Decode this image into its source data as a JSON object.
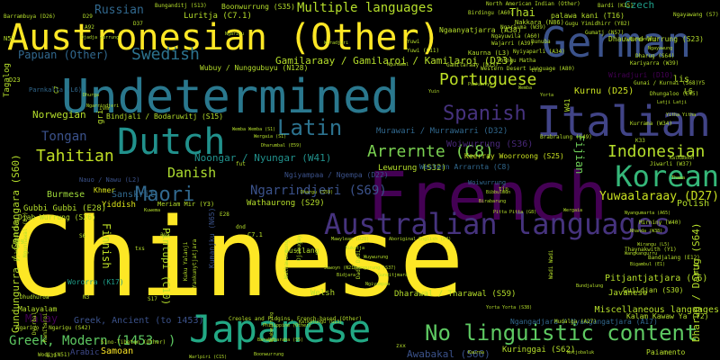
{
  "words": [
    {
      "text": "Chinese",
      "color": "#fde725"
    },
    {
      "text": "French",
      "color": "#440154"
    },
    {
      "text": "Undetermined",
      "color": "#2a788e"
    },
    {
      "text": "Austronesian (Other)",
      "color": "#fde725"
    },
    {
      "text": "German",
      "color": "#3b528b"
    },
    {
      "text": "Italian",
      "color": "#414487"
    },
    {
      "text": "Dutch",
      "color": "#21918c"
    },
    {
      "text": "Japanese",
      "color": "#22a884"
    },
    {
      "text": "Australian languages",
      "color": "#46337e"
    },
    {
      "text": "No linguistic content",
      "color": "#5ec962"
    },
    {
      "text": "Korean",
      "color": "#35b779"
    },
    {
      "text": "Spanish",
      "color": "#46327e"
    },
    {
      "text": "Latin",
      "color": "#2c728e"
    },
    {
      "text": "Portuguese",
      "color": "#bddf26"
    },
    {
      "text": "Maori",
      "color": "#31688e"
    },
    {
      "text": "Swedish",
      "color": "#2c728e"
    },
    {
      "text": "Arrernte (C8)",
      "color": "#7ad151"
    },
    {
      "text": "Indonesian",
      "color": "#b5de2b"
    },
    {
      "text": "Tahitian",
      "color": "#c0df25"
    },
    {
      "text": "Tongan",
      "color": "#3b528b"
    },
    {
      "text": "Danish",
      "color": "#addc30"
    },
    {
      "text": "Multiple languages",
      "color": "#b5de2b"
    },
    {
      "text": "Greek, Modern (1453- )",
      "color": "#5ec962"
    },
    {
      "text": "Ngarrindjeri (S69)",
      "color": "#3b528b"
    },
    {
      "text": "Russian",
      "color": "#31688e"
    },
    {
      "text": "Yuwaalaraay (D27)",
      "color": "#c8e020"
    },
    {
      "text": "Norwegian",
      "color": "#b5de2b"
    },
    {
      "text": "Papuan (Other)",
      "color": "#31688e"
    },
    {
      "text": "Gamilaraay / Gamilaroi / Kamilaroi (D23)",
      "color": "#b5de2b"
    },
    {
      "text": "Noongar / Nyungar (W41)",
      "color": "#21918c"
    },
    {
      "text": "Finnish",
      "color": "#bddf26"
    },
    {
      "text": "Pintupi (C10)",
      "color": "#b5de2b"
    },
    {
      "text": "Burmese",
      "color": "#9fda3a"
    },
    {
      "text": "Sanskrit",
      "color": "#31688e"
    },
    {
      "text": "Kurnu (D25)",
      "color": "#c8e020"
    },
    {
      "text": "Lewurung (S32)",
      "color": "#b5de2b"
    },
    {
      "text": "Wathaurong (S29)",
      "color": "#b5de2b"
    },
    {
      "text": "Murawari / Murrawarri (D32)",
      "color": "#31688e"
    },
    {
      "text": "Thai",
      "color": "#b5de2b"
    },
    {
      "text": "Czech",
      "color": "#1f9e89"
    },
    {
      "text": "Woiwurrung (S36)",
      "color": "#482878"
    },
    {
      "text": "Keerray Woorroong (S25)",
      "color": "#c8e020"
    },
    {
      "text": "Fijian",
      "color": "#6ece58"
    },
    {
      "text": "Polish",
      "color": "#b5de2b"
    },
    {
      "text": "Malay",
      "color": "#440154"
    },
    {
      "text": "Samoan",
      "color": "#fde725"
    },
    {
      "text": "Welsh",
      "color": "#b5de2b"
    },
    {
      "text": "Javanese",
      "color": "#b5de2b"
    },
    {
      "text": "Yiddish",
      "color": "#d8e219"
    },
    {
      "text": "Khmer",
      "color": "#d8e219"
    },
    {
      "text": "Arabic",
      "color": "#3e4989"
    },
    {
      "text": "Malayalam",
      "color": "#b5de2b"
    },
    {
      "text": "Awabakal (S66)",
      "color": "#3b528b"
    },
    {
      "text": "Wororra (K17)",
      "color": "#1f9e89"
    },
    {
      "text": "Dharawal / Tharawal (S59)",
      "color": "#b5de2b"
    },
    {
      "text": "Miscellaneous languages",
      "color": "#b5de2b"
    },
    {
      "text": "Pitjantjatjara (C6)",
      "color": "#b5de2b"
    },
    {
      "text": "Paiamento",
      "color": "#b5de2b"
    },
    {
      "text": "Greek, Ancient (to 1453)",
      "color": "#3b528b"
    },
    {
      "text": "Kuringgai (S62)",
      "color": "#b5de2b"
    },
    {
      "text": "Gundungurra / Gandangara (S60)",
      "color": "#b5de2b"
    },
    {
      "text": "Dharug / Darug (S64)",
      "color": "#b5de2b"
    },
    {
      "text": "Luritja (C7.1)",
      "color": "#b5de2b"
    },
    {
      "text": "Boonwurrung (S35)",
      "color": "#b5de2b"
    },
    {
      "text": "Ngaanyatjarra (A38)",
      "color": "#b5de2b"
    },
    {
      "text": "Djab Wurrung (S26)",
      "color": "#b5de2b"
    },
    {
      "text": "Gubbi Gubbi (E28)",
      "color": "#b5de2b"
    },
    {
      "text": "Ngiyampaa / Ngempa (D22)",
      "color": "#3b528b"
    },
    {
      "text": "Western Arrarnta (C8)",
      "color": "#31688e"
    },
    {
      "text": "Bindjali / Bodaruwitj (S15)",
      "color": "#b5de2b"
    },
    {
      "text": "Wubuy / Nunggubuyu (N128)",
      "color": "#b5de2b"
    },
    {
      "text": "Parnkalla (L6)",
      "color": "#31688e"
    },
    {
      "text": "Kumanjku (N65)",
      "color": "#3b528b"
    },
    {
      "text": "Nauo / Nawu (L2)",
      "color": "#3b528b"
    },
    {
      "text": "Meriam Mir (Y3)",
      "color": "#b5de2b"
    },
    {
      "text": "Wiradjuri (D10)",
      "color": "#440154"
    },
    {
      "text": "Dhauwurd Wurrung (S23)",
      "color": "#b5de2b"
    },
    {
      "text": "Creoles and Pidgins, French-based (Other)",
      "color": "#b5de2b"
    },
    {
      "text": "Ngangadjara / Nyangangatjara (A17)",
      "color": "#31688e"
    },
    {
      "text": "Kalam Kawaw Ya (Y2)",
      "color": "#b5de2b"
    },
    {
      "text": "Guildjan (S30)",
      "color": "#b5de2b"
    },
    {
      "text": "Yuwi (C11)",
      "color": "#b5de2b"
    },
    {
      "text": "austlang",
      "color": "#b5de2b"
    },
    {
      "text": "Sino-Tibetan (Other)",
      "color": "#b5de2b"
    },
    {
      "text": "Dharug (S64)",
      "color": "#b5de2b"
    },
    {
      "text": "Yolngu Matha",
      "color": "#b5de2b"
    },
    {
      "text": "Gumatj (N57)",
      "color": "#b5de2b"
    },
    {
      "text": "Nakkara (N86)",
      "color": "#b5de2b"
    },
    {
      "text": "Mudalga (A27)",
      "color": "#b5de2b"
    },
    {
      "text": "Woiwurrung",
      "color": "#31688e"
    },
    {
      "text": "Tagalog",
      "color": "#b5de2b"
    },
    {
      "text": "C7.1",
      "color": "#b5de2b"
    },
    {
      "text": "D23",
      "color": "#b5de2b"
    },
    {
      "text": "E29",
      "color": "#b5de2b"
    },
    {
      "text": "N57",
      "color": "#b5de2b"
    },
    {
      "text": "gri",
      "color": "#b5de2b"
    },
    {
      "text": "aus",
      "color": "#b5de2b"
    },
    {
      "text": "lis",
      "color": "#b5de2b"
    },
    {
      "text": "L6",
      "color": "#b5de2b"
    },
    {
      "text": "W41",
      "color": "#b5de2b"
    },
    {
      "text": "mtt",
      "color": "#b5de2b"
    },
    {
      "text": "palawa kani (T16)",
      "color": "#b5de2b"
    },
    {
      "text": "Yuwi",
      "color": "#b5de2b"
    },
    {
      "text": "Kaurna (L3)",
      "color": "#b5de2b"
    },
    {
      "text": "Bardi (K15)",
      "color": "#b5de2b"
    },
    {
      "text": "Bunuba",
      "color": "#b5de2b"
    },
    {
      "text": "Ngayawang (S7)",
      "color": "#b5de2b"
    },
    {
      "text": "North American Indian (Other)",
      "color": "#b5de2b"
    },
    {
      "text": "Birdingu (A60)",
      "color": "#b5de2b"
    },
    {
      "text": "Barrambuya (D26)",
      "color": "#b5de2b"
    },
    {
      "text": "Bunganditj (S13)",
      "color": "#b5de2b"
    },
    {
      "text": "Gamilaraay (D23)",
      "color": "#b5de2b"
    },
    {
      "text": "Ngayuwila (A60)",
      "color": "#b5de2b"
    },
    {
      "text": "Ngarluma (W39)",
      "color": "#b5de2b"
    },
    {
      "text": "Nyiyaparli (A34)",
      "color": "#b5de2b"
    },
    {
      "text": "Wajarri (A39)",
      "color": "#b5de2b"
    },
    {
      "text": "Western Desert Language (A80)",
      "color": "#b5de2b"
    },
    {
      "text": "Gugu Yimidhirr (Y82)",
      "color": "#b5de2b"
    },
    {
      "text": "Kariyarra (W39)",
      "color": "#b5de2b"
    },
    {
      "text": "Gunai / Kurnai (S68)",
      "color": "#b5de2b"
    },
    {
      "text": "Dhungaloo (E45)",
      "color": "#b5de2b"
    },
    {
      "text": "Jiwarli (W37)",
      "color": "#b5de2b"
    },
    {
      "text": "Wemba Wemba (S1)",
      "color": "#b5de2b"
    },
    {
      "text": "Wergaia (S1)",
      "color": "#b5de2b"
    },
    {
      "text": "Dharumbal (E59)",
      "color": "#b5de2b"
    },
    {
      "text": "Dhargu (S59)",
      "color": "#b5de2b"
    },
    {
      "text": "Bibbulmun",
      "color": "#b5de2b"
    },
    {
      "text": "Birabarung",
      "color": "#b5de2b"
    },
    {
      "text": "Pitta Pitta (G8)",
      "color": "#b5de2b"
    },
    {
      "text": "Brabralung (S49)",
      "color": "#b5de2b"
    },
    {
      "text": "Kurrama (W34)",
      "color": "#b5de2b"
    },
    {
      "text": "Nyangumarta (A65)",
      "color": "#b5de2b"
    },
    {
      "text": "Mirniny (W40)",
      "color": "#b5de2b"
    },
    {
      "text": "Nhanda (W38)",
      "color": "#b5de2b"
    },
    {
      "text": "Bigambul (E1)",
      "color": "#b5de2b"
    },
    {
      "text": "Bandjalang (E12)",
      "color": "#b5de2b"
    },
    {
      "text": "Thaynakwith (Y1)",
      "color": "#b5de2b"
    },
    {
      "text": "Wirangu (L5)",
      "color": "#b5de2b"
    },
    {
      "text": "Wangkangurru",
      "color": "#b5de2b"
    },
    {
      "text": "Djadjawurrung",
      "color": "#b5de2b"
    },
    {
      "text": "Ngunnawal (D3)",
      "color": "#b5de2b"
    },
    {
      "text": "Kuku Yalanji",
      "color": "#b5de2b"
    },
    {
      "text": "Yankunytjatjara",
      "color": "#b5de2b"
    },
    {
      "text": "Wathawurrung",
      "color": "#b5de2b"
    },
    {
      "text": "Djabugay",
      "color": "#b5de2b"
    },
    {
      "text": "Dadi Dadi",
      "color": "#b5de2b"
    },
    {
      "text": "Wadi Wadi",
      "color": "#b5de2b"
    },
    {
      "text": "Ngarigo / Ngarigu (S42)",
      "color": "#b5de2b"
    },
    {
      "text": "Dyirbal",
      "color": "#b5de2b"
    },
    {
      "text": "Kamilaroi",
      "color": "#b5de2b"
    },
    {
      "text": "Wodi (N51)",
      "color": "#b5de2b"
    },
    {
      "text": "Boonwurrung",
      "color": "#b5de2b"
    },
    {
      "text": "Djabwurrung",
      "color": "#b5de2b"
    },
    {
      "text": "Warlpiri (C15)",
      "color": "#b5de2b"
    },
    {
      "text": "Philippine (Other)",
      "color": "#b5de2b"
    },
    {
      "text": "Mawylean (D28)",
      "color": "#b5de2b"
    },
    {
      "text": "Aboriginal English (P4)",
      "color": "#b5de2b"
    },
    {
      "text": "Wuywurung",
      "color": "#b5de2b"
    },
    {
      "text": "Jawoyn (N21)",
      "color": "#b5de2b"
    },
    {
      "text": "Kukatja",
      "color": "#b5de2b"
    },
    {
      "text": "Bidjara",
      "color": "#b5de2b"
    },
    {
      "text": "Taungurung (S37)",
      "color": "#b5de2b"
    },
    {
      "text": "Ngiyampaa",
      "color": "#b5de2b"
    },
    {
      "text": "Gunditjmara",
      "color": "#b5de2b"
    },
    {
      "text": "Dhudhuroa",
      "color": "#b5de2b"
    },
    {
      "text": "Kuwema",
      "color": "#b5de2b"
    },
    {
      "text": "Dhurga",
      "color": "#b5de2b"
    },
    {
      "text": "Ngarrindjeri",
      "color": "#b5de2b"
    },
    {
      "text": "Barababaraba (S5)",
      "color": "#b5de2b"
    },
    {
      "text": "Kalkatungu (G13)",
      "color": "#b5de2b"
    },
    {
      "text": "Yorta Yorta (S38)",
      "color": "#b5de2b"
    },
    {
      "text": "Kaurna",
      "color": "#b5de2b"
    },
    {
      "text": "Wotjobaluk",
      "color": "#b5de2b"
    },
    {
      "text": "Bundjalung",
      "color": "#b5de2b"
    },
    {
      "text": "Wergaia",
      "color": "#b5de2b"
    },
    {
      "text": "Bunganditj",
      "color": "#b5de2b"
    },
    {
      "text": "Ngayawung",
      "color": "#b5de2b"
    },
    {
      "text": "Latji Latji",
      "color": "#b5de2b"
    },
    {
      "text": "Yitha Yitha",
      "color": "#b5de2b"
    },
    {
      "text": "Kalkadoon",
      "color": "#b5de2b"
    },
    {
      "text": "Thawa",
      "color": "#b5de2b"
    },
    {
      "text": "Djadja wurrung",
      "color": "#b5de2b"
    },
    {
      "text": "Ngarigu",
      "color": "#b5de2b"
    },
    {
      "text": "Wiradjuri",
      "color": "#b5de2b"
    },
    {
      "text": "Ngunawal",
      "color": "#b5de2b"
    },
    {
      "text": "Yuin",
      "color": "#b5de2b"
    },
    {
      "text": "Wemba",
      "color": "#b5de2b"
    },
    {
      "text": "Yorta",
      "color": "#b5de2b"
    },
    {
      "text": "Paakantyi",
      "color": "#b5de2b"
    },
    {
      "text": "D29",
      "color": "#b5de2b"
    },
    {
      "text": "C7",
      "color": "#b5de2b"
    },
    {
      "text": "A92",
      "color": "#b5de2b"
    },
    {
      "text": "D37",
      "color": "#b5de2b"
    },
    {
      "text": "N3",
      "color": "#b5de2b"
    },
    {
      "text": "S17",
      "color": "#b5de2b"
    },
    {
      "text": "E28",
      "color": "#b5de2b"
    },
    {
      "text": "E39",
      "color": "#b5de2b"
    },
    {
      "text": "S6",
      "color": "#b5de2b"
    },
    {
      "text": "Y5",
      "color": "#b5de2b"
    },
    {
      "text": "K33",
      "color": "#b5de2b"
    },
    {
      "text": "fut",
      "color": "#b5de2b"
    },
    {
      "text": "tip",
      "color": "#b5de2b"
    },
    {
      "text": "txs",
      "color": "#b5de2b"
    },
    {
      "text": "dnd",
      "color": "#b5de2b"
    },
    {
      "text": "trn",
      "color": "#b5de2b"
    },
    {
      "text": "ivm",
      "color": "#b5de2b"
    },
    {
      "text": "zxx",
      "color": "#b5de2b"
    }
  ]
}
